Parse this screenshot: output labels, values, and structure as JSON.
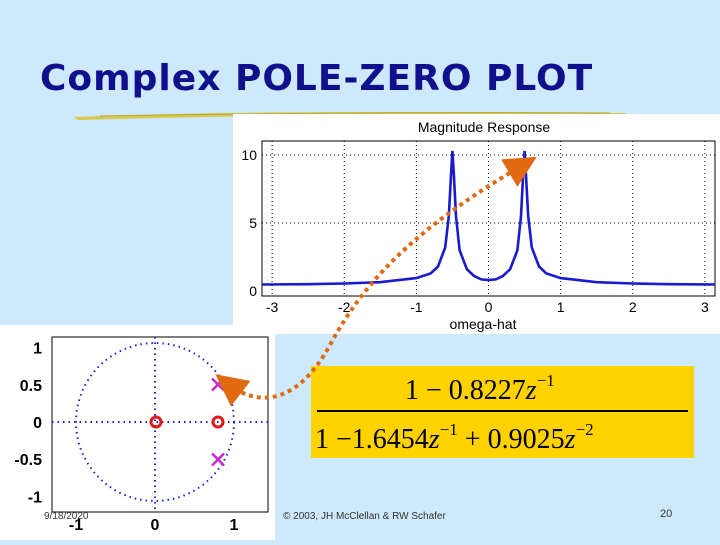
{
  "title": "Complex POLE-ZERO PLOT",
  "footer": {
    "date": "9/18/2020",
    "copyright": "© 2003, JH McClellan & RW Schafer",
    "page": "20"
  },
  "magnitude_plot": {
    "title": "Magnitude Response",
    "xlabel": "omega-hat",
    "x_ticks": [
      "-3",
      "-2",
      "-1",
      "0",
      "1",
      "2",
      "3"
    ],
    "y_ticks": [
      "0",
      "5",
      "10"
    ]
  },
  "pole_zero_plot": {
    "x_ticks": [
      "-1",
      "0",
      "1"
    ],
    "y_ticks": [
      "1",
      "0.5",
      "0",
      "-0.5",
      "-1"
    ]
  },
  "transfer_function": {
    "numerator_lead": "1 − 0.8227",
    "numerator_var": "z",
    "numerator_exp": "−1",
    "denominator_lead": "1 −1.6454",
    "denominator_var1": "z",
    "denominator_exp1": "−1",
    "denominator_mid": " + 0.9025",
    "denominator_var2": "z",
    "denominator_exp2": "−2"
  },
  "colors": {
    "background": "#cde9fb",
    "title": "#10108c",
    "curve": "#1a1ad0",
    "pole": "#c828c8",
    "zero": "#e01818",
    "arrow": "#e06a10",
    "tf_box": "#ffd200"
  },
  "chart_data": [
    {
      "type": "line",
      "title": "Magnitude Response",
      "xlabel": "omega-hat",
      "ylabel": "",
      "xlim": [
        -3.14,
        3.14
      ],
      "ylim": [
        0,
        10
      ],
      "grid": true,
      "series": [
        {
          "x": [
            -3.14,
            -2.5,
            -2,
            -1.5,
            -1,
            -0.8,
            -0.7,
            -0.6,
            -0.55,
            -0.52,
            -0.5,
            -0.48,
            -0.45,
            -0.4,
            -0.3,
            -0.2,
            -0.1,
            0,
            0.1,
            0.2,
            0.3,
            0.4,
            0.45,
            0.48,
            0.5,
            0.52,
            0.55,
            0.6,
            0.7,
            0.8,
            1,
            1.5,
            2,
            2.5,
            3.14
          ],
          "y": [
            0.48,
            0.5,
            0.55,
            0.65,
            0.95,
            1.3,
            1.8,
            3.2,
            5.5,
            8.5,
            10.5,
            8.5,
            5.5,
            3.0,
            1.6,
            1.1,
            0.85,
            0.8,
            0.85,
            1.1,
            1.6,
            3.0,
            5.5,
            8.5,
            10.5,
            8.5,
            5.5,
            3.2,
            1.8,
            1.3,
            0.95,
            0.65,
            0.55,
            0.5,
            0.48
          ]
        }
      ]
    },
    {
      "type": "scatter",
      "title": "",
      "xlabel": "",
      "ylabel": "",
      "xlim": [
        -1.25,
        1.25
      ],
      "ylim": [
        -1.1,
        1.1
      ],
      "grid": true,
      "unit_circle": true,
      "series": [
        {
          "marker": "x",
          "x": [
            0.8227,
            0.8227
          ],
          "y": [
            0.475,
            -0.475
          ]
        },
        {
          "marker": "o",
          "x": [
            0,
            0.8227
          ],
          "y": [
            0,
            0
          ]
        }
      ]
    }
  ]
}
